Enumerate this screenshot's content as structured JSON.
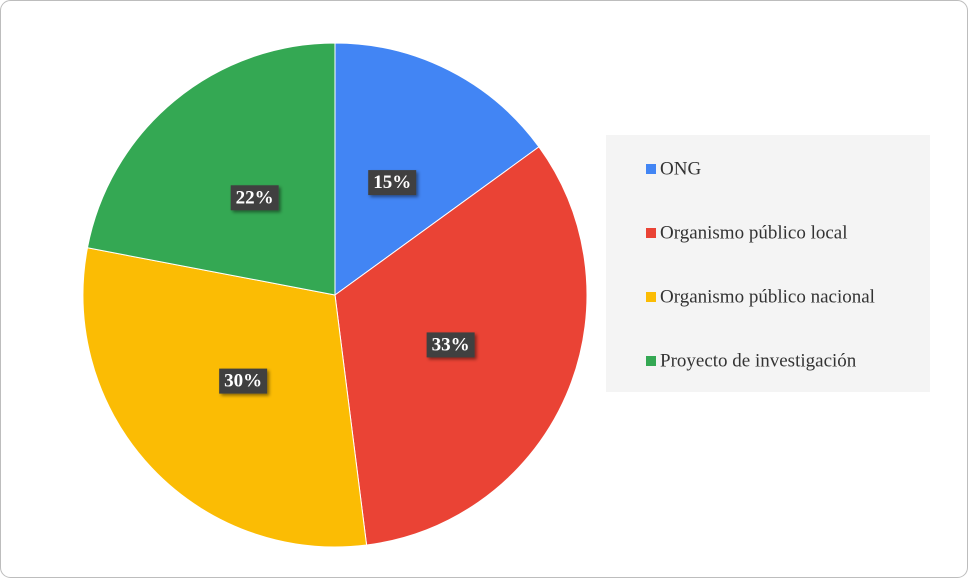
{
  "chart_data": {
    "type": "pie",
    "categories": [
      "ONG",
      "Organismo público local",
      "Organismo público nacional",
      "Proyecto de investigación"
    ],
    "values": [
      15,
      33,
      30,
      22
    ],
    "value_labels": [
      "15%",
      "33%",
      "30%",
      "22%"
    ],
    "colors": [
      "#4285f4",
      "#ea4335",
      "#fbbc04",
      "#34a853"
    ],
    "legend": "right"
  }
}
